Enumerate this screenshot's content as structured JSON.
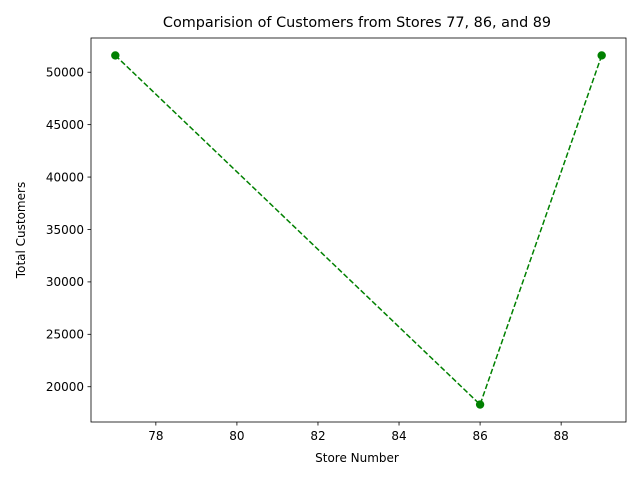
{
  "chart_data": {
    "type": "line",
    "title": "Comparision of Customers from Stores 77, 86, and 89",
    "xlabel": "Store Number",
    "ylabel": "Total Customers",
    "x": [
      77,
      86,
      89
    ],
    "series": [
      {
        "values": [
          51600,
          18300,
          51600
        ]
      }
    ],
    "xlim": [
      76.4,
      89.6
    ],
    "ylim": [
      16635,
      53265
    ],
    "xticks": [
      78,
      80,
      82,
      84,
      86,
      88
    ],
    "yticks": [
      20000,
      25000,
      30000,
      35000,
      40000,
      45000,
      50000
    ],
    "line_style": "dashed",
    "marker": "circle",
    "color": "#008000",
    "grid": false,
    "legend": false
  }
}
